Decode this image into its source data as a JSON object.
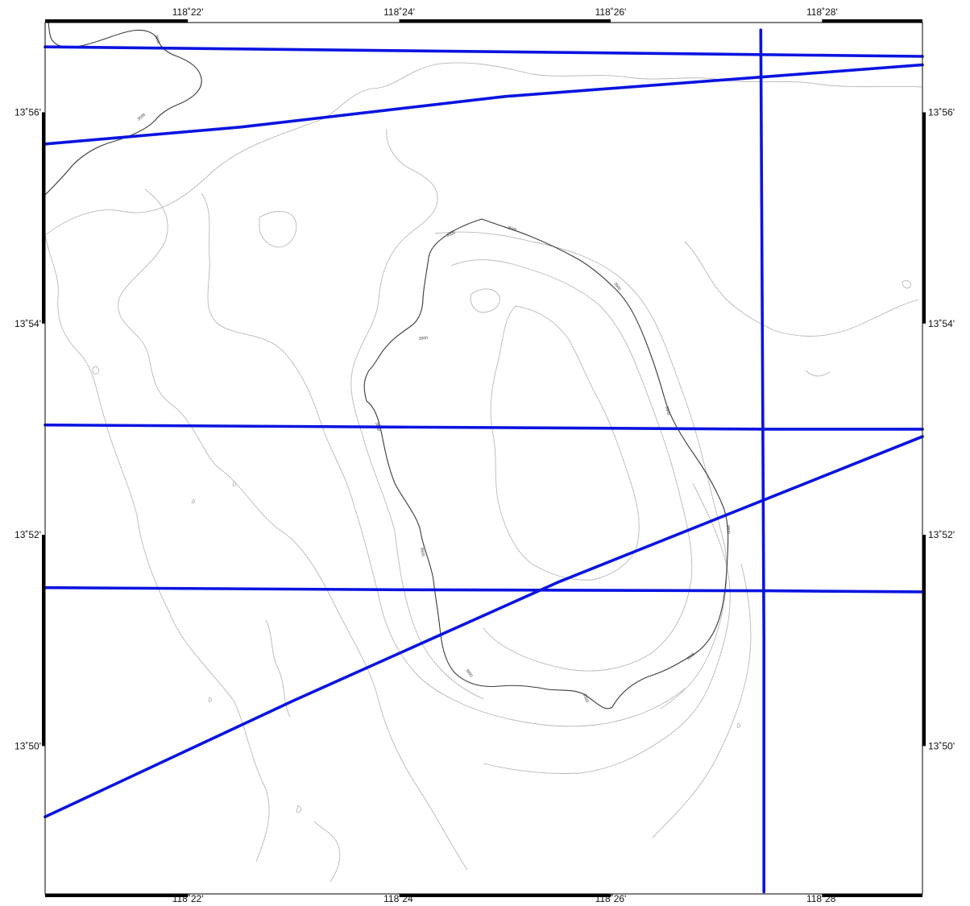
{
  "map": {
    "type": "bathymetric-contour-map",
    "colors": {
      "track_line": "#0a14e0",
      "major_contour": "#3a3a3a",
      "minor_contour": "#b8b8b8",
      "frame": "#000000",
      "background": "#ffffff"
    },
    "longitude_ticks": [
      {
        "label": "118˚22'",
        "lon_min": 22
      },
      {
        "label": "118˚24'",
        "lon_min": 24
      },
      {
        "label": "118˚26'",
        "lon_min": 26
      },
      {
        "label": "118˚28'",
        "lon_min": 28
      }
    ],
    "latitude_ticks": [
      {
        "label": "13˚56'",
        "lat_min": 56
      },
      {
        "label": "13˚54'",
        "lat_min": 54
      },
      {
        "label": "13˚52'",
        "lat_min": 52
      },
      {
        "label": "13˚50'",
        "lat_min": 50
      }
    ],
    "contour_label": "3500",
    "extent": {
      "lon_min_arcmin": 20.65,
      "lon_max_arcmin": 28.95,
      "lat_min_arcmin": 48.6,
      "lat_max_arcmin": 56.85
    },
    "track_lines": [
      {
        "name": "track-1",
        "points": [
          [
            20.65,
            56.62
          ],
          [
            28.95,
            56.53
          ]
        ]
      },
      {
        "name": "track-2",
        "points": [
          [
            20.65,
            55.7
          ],
          [
            22.5,
            55.86
          ],
          [
            25.0,
            56.15
          ],
          [
            28.95,
            56.45
          ]
        ]
      },
      {
        "name": "track-3",
        "points": [
          [
            20.65,
            53.04
          ],
          [
            24.0,
            53.02
          ],
          [
            27.5,
            53.0
          ],
          [
            28.95,
            53.0
          ]
        ]
      },
      {
        "name": "track-4",
        "points": [
          [
            20.65,
            51.5
          ],
          [
            24.0,
            51.48
          ],
          [
            27.5,
            51.47
          ],
          [
            28.95,
            51.46
          ]
        ]
      },
      {
        "name": "track-5",
        "points": [
          [
            20.65,
            49.33
          ],
          [
            23.0,
            50.43
          ],
          [
            25.5,
            51.55
          ],
          [
            28.95,
            52.93
          ]
        ]
      },
      {
        "name": "track-6",
        "points": [
          [
            27.42,
            56.78
          ],
          [
            27.44,
            53.0
          ],
          [
            27.45,
            51.0
          ],
          [
            27.45,
            48.62
          ]
        ]
      }
    ]
  }
}
